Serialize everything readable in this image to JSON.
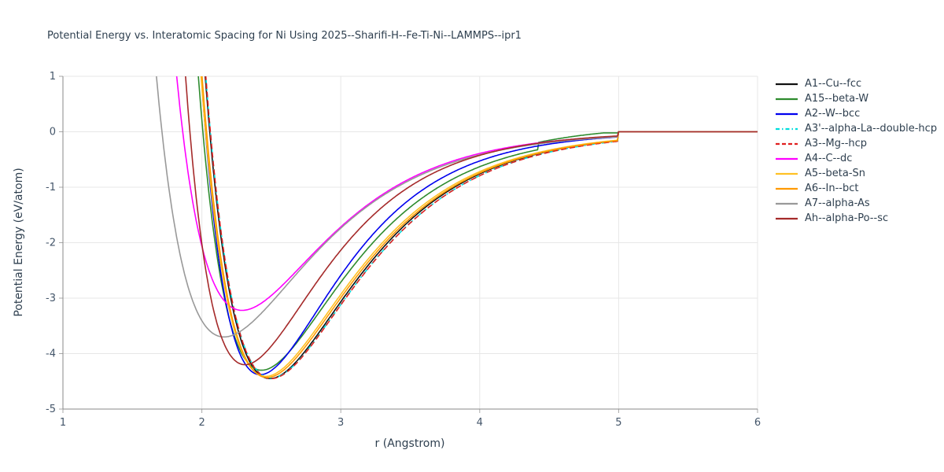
{
  "title": "Potential Energy vs. Interatomic Spacing for Ni Using 2025--Sharifi-H--Fe-Ti-Ni--LAMMPS--ipr1",
  "chart_data": {
    "type": "line",
    "title": "Potential Energy vs. Interatomic Spacing for Ni Using 2025--Sharifi-H--Fe-Ti-Ni--LAMMPS--ipr1",
    "xlabel": "r (Angstrom)",
    "ylabel": "Potential Energy (eV/atom)",
    "xlim": [
      1,
      6
    ],
    "ylim": [
      -5,
      1
    ],
    "x_ticks": [
      1,
      2,
      3,
      4,
      5,
      6
    ],
    "y_ticks": [
      -5,
      -4,
      -3,
      -2,
      -1,
      0,
      1
    ],
    "grid": true,
    "legend_position": "right",
    "cutoff_r": 5.0,
    "tail_value_after_cutoff": 0,
    "series": [
      {
        "name": "A1--Cu--fcc",
        "color": "#111111",
        "dash": "solid",
        "r_min": 2.49,
        "e_min": -4.45,
        "a": 1.6
      },
      {
        "name": "A15--beta-W",
        "color": "#2e8b2e",
        "dash": "solid",
        "r_min": 2.43,
        "e_min": -4.3,
        "a": 1.64,
        "step": {
          "x": 4.42,
          "dy": 0.13
        }
      },
      {
        "name": "A2--W--bcc",
        "color": "#0000ee",
        "dash": "solid",
        "r_min": 2.42,
        "e_min": -4.38,
        "a": 1.76
      },
      {
        "name": "A3'--alpha-La--double-hcp",
        "color": "#00dddd",
        "dash": "dashdot",
        "r_min": 2.5,
        "e_min": -4.44,
        "a": 1.58
      },
      {
        "name": "A3--Mg--hcp",
        "color": "#e02020",
        "dash": "dashed",
        "r_min": 2.5,
        "e_min": -4.45,
        "a": 1.58
      },
      {
        "name": "A4--C--dc",
        "color": "#ff00ff",
        "dash": "solid",
        "r_min": 2.29,
        "e_min": -3.22,
        "a": 1.62
      },
      {
        "name": "A5--beta-Sn",
        "color": "#ffc125",
        "dash": "solid",
        "r_min": 2.46,
        "e_min": -4.41,
        "a": 1.6
      },
      {
        "name": "A6--In--bct",
        "color": "#ff9900",
        "dash": "solid",
        "r_min": 2.47,
        "e_min": -4.43,
        "a": 1.59
      },
      {
        "name": "A7--alpha-As",
        "color": "#999999",
        "dash": "solid",
        "r_min": 2.16,
        "e_min": -3.7,
        "a": 1.55
      },
      {
        "name": "Ah--alpha-Po--sc",
        "color": "#a52a2a",
        "dash": "solid",
        "r_min": 2.31,
        "e_min": -4.2,
        "a": 1.75
      }
    ]
  }
}
